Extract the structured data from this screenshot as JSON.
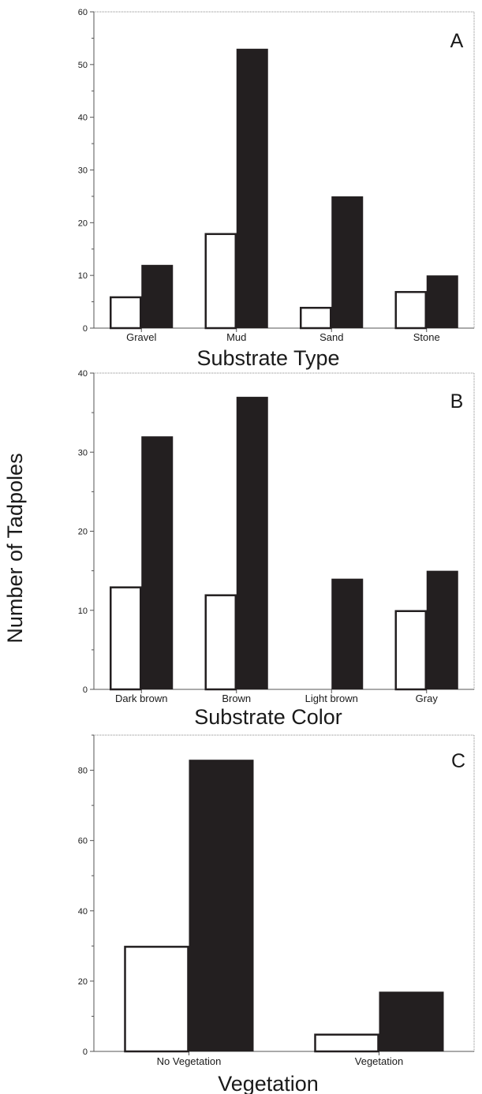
{
  "figure": {
    "ylabel": "Number of Tadpoles"
  },
  "chart_data": [
    {
      "type": "bar",
      "panel": "A",
      "xlabel": "Substrate Type",
      "ylabel": "Number of Tadpoles",
      "categories": [
        "Gravel",
        "Mud",
        "Sand",
        "Stone"
      ],
      "series": [
        {
          "values": [
            6,
            18,
            4,
            7
          ],
          "color": "#ffffff"
        },
        {
          "values": [
            12,
            53,
            25,
            10
          ],
          "color": "#231f20"
        }
      ],
      "ylim": [
        0,
        60
      ],
      "yticks": [
        0,
        10,
        20,
        30,
        40,
        50,
        60
      ],
      "grid": false
    },
    {
      "type": "bar",
      "panel": "B",
      "xlabel": "Substrate Color",
      "ylabel": "Number of Tadpoles",
      "categories": [
        "Dark brown",
        "Brown",
        "Light brown",
        "Gray"
      ],
      "series": [
        {
          "values": [
            13,
            12,
            0,
            10
          ],
          "color": "#ffffff"
        },
        {
          "values": [
            32,
            37,
            14,
            15
          ],
          "color": "#231f20"
        }
      ],
      "ylim": [
        0,
        40
      ],
      "yticks": [
        0,
        10,
        20,
        30,
        40
      ],
      "grid": false
    },
    {
      "type": "bar",
      "panel": "C",
      "xlabel": "Vegetation",
      "ylabel": "Number of Tadpoles",
      "categories": [
        "No Vegetation",
        "Vegetation"
      ],
      "series": [
        {
          "values": [
            30,
            5
          ],
          "color": "#ffffff"
        },
        {
          "values": [
            83,
            17
          ],
          "color": "#231f20"
        }
      ],
      "ylim": [
        0,
        90
      ],
      "yticks": [
        0,
        20,
        40,
        60,
        80
      ],
      "grid": false
    }
  ]
}
